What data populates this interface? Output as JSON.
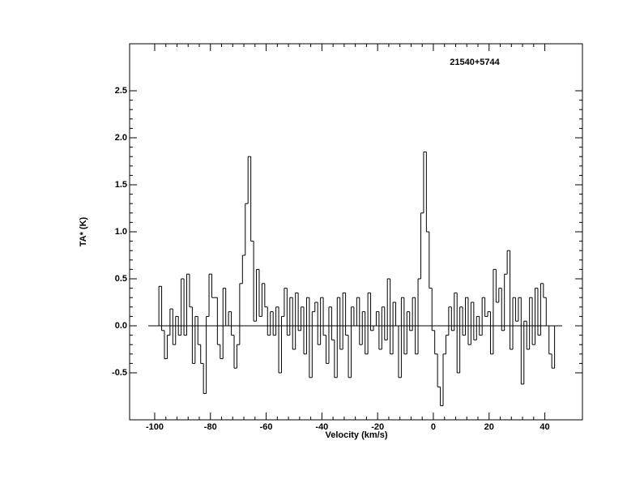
{
  "chart_data": {
    "type": "step",
    "title": "21540+5744",
    "xlabel": "Velocity (km/s)",
    "ylabel": "TA* (K)",
    "xlim": [
      -109,
      53.5
    ],
    "ylim": [
      -1,
      3
    ],
    "xticks": [
      -100,
      -80,
      -60,
      -40,
      -20,
      0,
      20,
      40
    ],
    "yticks": [
      -0.5,
      {
        "value": 0,
        "label": "0.0"
      },
      0.5,
      {
        "value": 1,
        "label": "1.0"
      },
      1.5,
      {
        "value": 2,
        "label": "2.0"
      },
      2.5
    ],
    "color": "#000000",
    "x": [
      -98,
      -97,
      -96,
      -95,
      -94,
      -93,
      -92,
      -91,
      -90,
      -89,
      -88,
      -87,
      -86,
      -85,
      -84,
      -83,
      -82,
      -81,
      -80,
      -79,
      -78,
      -77,
      -76,
      -75,
      -74,
      -73,
      -72,
      -71,
      -70,
      -69,
      -68,
      -67,
      -66,
      -65,
      -64,
      -63,
      -62,
      -61,
      -60,
      -59,
      -58,
      -57,
      -56,
      -55,
      -54,
      -53,
      -52,
      -51,
      -50,
      -49,
      -48,
      -47,
      -46,
      -45,
      -44,
      -43,
      -42,
      -41,
      -40,
      -39,
      -38,
      -37,
      -36,
      -35,
      -34,
      -33,
      -32,
      -31,
      -30,
      -29,
      -28,
      -27,
      -26,
      -25,
      -24,
      -23,
      -22,
      -21,
      -20,
      -19,
      -18,
      -17,
      -16,
      -15,
      -14,
      -13,
      -12,
      -11,
      -10,
      -9,
      -8,
      -7,
      -6,
      -5,
      -4,
      -3,
      -2,
      -1,
      0,
      1,
      2,
      3,
      4,
      5,
      6,
      7,
      8,
      9,
      10,
      11,
      12,
      13,
      14,
      15,
      16,
      17,
      18,
      19,
      20,
      21,
      22,
      23,
      24,
      25,
      26,
      27,
      28,
      29,
      30,
      31,
      32,
      33,
      34,
      35,
      36,
      37,
      38,
      39,
      40,
      41,
      42,
      43
    ],
    "values": [
      0.42,
      -0.05,
      -0.35,
      -0.1,
      0.18,
      -0.2,
      0.1,
      -0.1,
      0.5,
      -0.1,
      0.55,
      0.2,
      -0.4,
      0.1,
      -0.2,
      -0.4,
      -0.72,
      0.1,
      0.55,
      0.3,
      0.3,
      -0.2,
      -0.35,
      0.4,
      0.0,
      0.15,
      -0.1,
      -0.45,
      -0.2,
      0.45,
      0.75,
      1.3,
      1.8,
      0.9,
      0.05,
      0.6,
      0.1,
      0.45,
      0.2,
      -0.1,
      0.15,
      -0.1,
      0.2,
      -0.5,
      0.1,
      0.4,
      -0.1,
      0.3,
      -0.25,
      0.35,
      -0.05,
      0.2,
      -0.3,
      0.3,
      -0.55,
      0.15,
      0.25,
      -0.2,
      0.3,
      -0.1,
      -0.4,
      0.2,
      -0.15,
      -0.55,
      0.3,
      -0.25,
      0.35,
      -0.1,
      -0.55,
      0.2,
      0.0,
      0.3,
      -0.2,
      0.15,
      -0.3,
      0.35,
      -0.05,
      0.0,
      0.15,
      -0.25,
      0.2,
      -0.15,
      0.5,
      -0.3,
      0.25,
      0.0,
      -0.55,
      0.3,
      -0.3,
      0.15,
      -0.05,
      0.3,
      -0.3,
      0.5,
      1.2,
      1.85,
      1.0,
      0.4,
      -0.05,
      -0.3,
      -0.65,
      -0.85,
      -0.3,
      -0.1,
      0.2,
      -0.05,
      0.35,
      -0.5,
      0.2,
      -0.1,
      0.3,
      -0.2,
      0.25,
      -0.15,
      0.1,
      -0.1,
      0.3,
      0.1,
      0.15,
      -0.3,
      0.6,
      0.25,
      0.4,
      -0.05,
      0.55,
      0.8,
      -0.25,
      0.3,
      0.05,
      0.3,
      -0.62,
      0.05,
      -0.25,
      0.3,
      -0.2,
      0.4,
      -0.1,
      0.45,
      0.3,
      0.0,
      -0.3,
      -0.45
    ]
  }
}
